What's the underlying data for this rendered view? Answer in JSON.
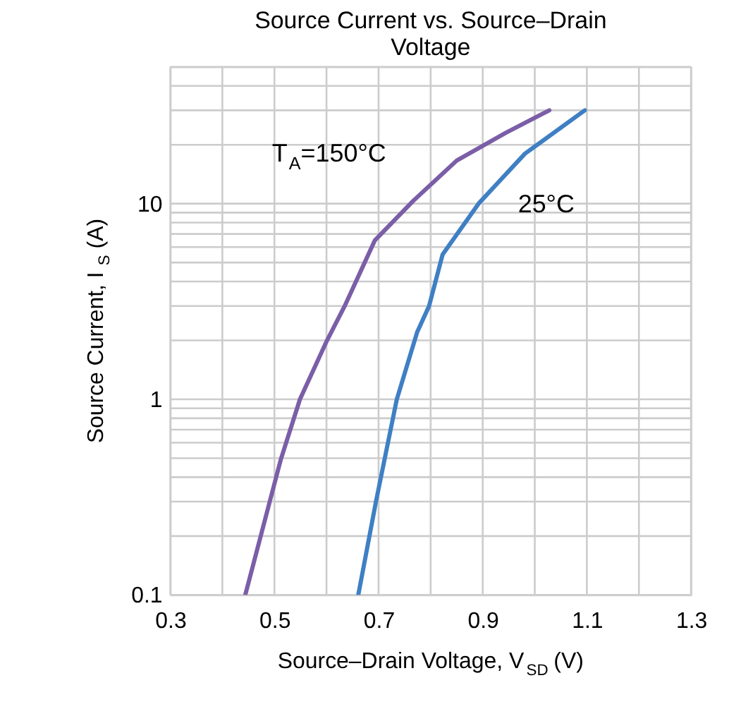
{
  "chart_data": {
    "type": "line",
    "title": [
      "Source Current vs. Source–Drain",
      "Voltage"
    ],
    "xlabel": "Source–Drain Voltage, V$_{SD}$ (V)",
    "ylabel": "Source Current, I$_{S}$ (A)",
    "log": "y",
    "grid": true,
    "legend": false,
    "line_style": "solid",
    "marker": "none",
    "xlim": [
      0.3,
      1.3
    ],
    "ylim": [
      0.1,
      50
    ],
    "xticks": [
      0.3,
      {
        "value": 0.4,
        "label": null
      },
      0.5,
      {
        "value": 0.6,
        "label": null
      },
      0.7,
      {
        "value": 0.8,
        "label": null
      },
      0.9,
      {
        "value": 1.0,
        "label": null
      },
      1.1,
      {
        "value": 1.2,
        "label": null
      },
      1.3
    ],
    "yticks": [
      0.1,
      {
        "value": 0.2,
        "label": null
      },
      {
        "value": 0.3,
        "label": null
      },
      {
        "value": 0.4,
        "label": null
      },
      {
        "value": 0.5,
        "label": null
      },
      {
        "value": 0.6,
        "label": null
      },
      {
        "value": 0.7,
        "label": null
      },
      {
        "value": 0.8,
        "label": null
      },
      {
        "value": 0.9,
        "label": null
      },
      1,
      {
        "value": 2,
        "label": null
      },
      {
        "value": 3,
        "label": null
      },
      {
        "value": 4,
        "label": null
      },
      {
        "value": 5,
        "label": null
      },
      {
        "value": 6,
        "label": null
      },
      {
        "value": 7,
        "label": null
      },
      {
        "value": 8,
        "label": null
      },
      {
        "value": 9,
        "label": null
      },
      10,
      {
        "value": 20,
        "label": null
      },
      {
        "value": 30,
        "label": null
      },
      {
        "value": 40,
        "label": null
      },
      {
        "value": 50,
        "label": null
      }
    ],
    "series": [
      {
        "name": "T$_{A}$=150°C",
        "color": "#7b5ea7",
        "x": [
          0.444,
          0.491,
          0.512,
          0.549,
          0.601,
          0.635,
          0.693,
          0.766,
          0.85,
          0.944,
          1.028
        ],
        "values": [
          0.1,
          0.3,
          0.49,
          1.0,
          2.0,
          3.0,
          6.5,
          10.3,
          16.6,
          23,
          30
        ]
      },
      {
        "name": "25°C",
        "color": "#3f7fc4",
        "x": [
          0.661,
          0.695,
          0.735,
          0.774,
          0.797,
          0.823,
          0.892,
          0.981,
          1.096
        ],
        "values": [
          0.1,
          0.3,
          1.0,
          2.2,
          3.0,
          5.5,
          10,
          18,
          30
        ]
      }
    ]
  }
}
